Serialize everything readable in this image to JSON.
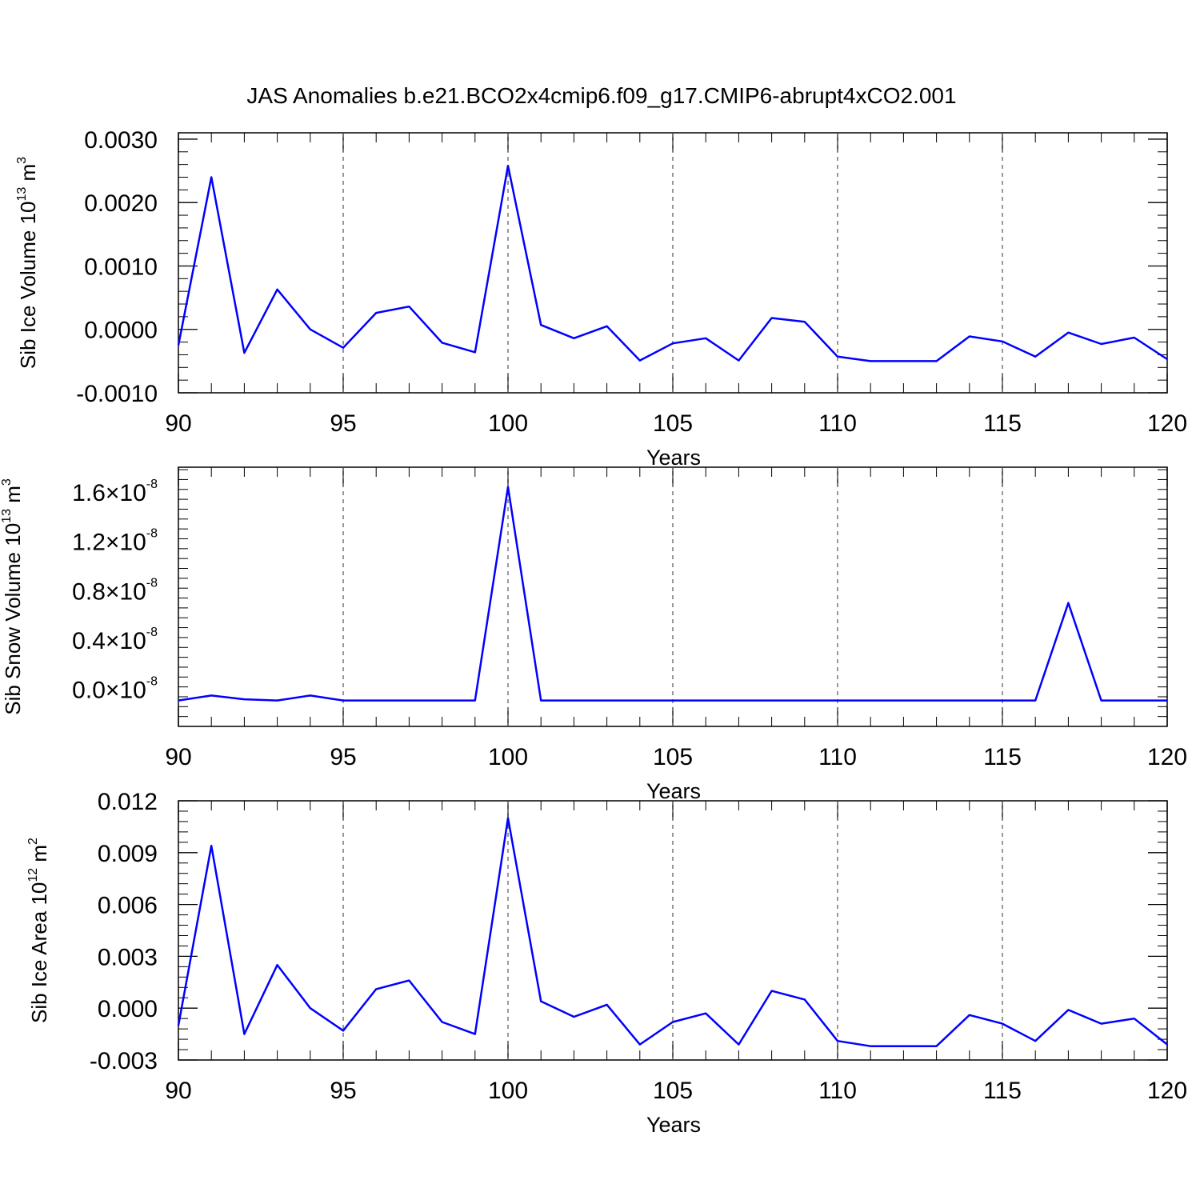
{
  "title": "JAS Anomalies b.e21.BCO2x4cmip6.f09_g17.CMIP6-abrupt4xCO2.001",
  "line_color": "#0000ff",
  "chart_data": [
    {
      "type": "line",
      "ylabel": {
        "text": "Sib Ice Volume 10",
        "sup": "13",
        "unit": " m",
        "unit_sup": "3"
      },
      "xlabel": "Years",
      "xlim": [
        90,
        120
      ],
      "ylim": [
        -0.001,
        0.0031
      ],
      "xticks": [
        "90",
        "95",
        "100",
        "105",
        "110",
        "115",
        "120"
      ],
      "yticks": [
        {
          "value": -0.001,
          "label": "-0.0010"
        },
        {
          "value": 0.0,
          "label": "0.0000"
        },
        {
          "value": 0.001,
          "label": "0.0010"
        },
        {
          "value": 0.002,
          "label": "0.0020"
        },
        {
          "value": 0.003,
          "label": "0.0030"
        }
      ],
      "grid": "vertical dashed at major x ticks",
      "series": [
        {
          "x": [
            90,
            91,
            92,
            93,
            94,
            95,
            96,
            97,
            98,
            99,
            100,
            101,
            102,
            103,
            104,
            105,
            106,
            107,
            108,
            109,
            110,
            111,
            112,
            113,
            114,
            115,
            116,
            117,
            118,
            119,
            120
          ],
          "values": [
            -0.00025,
            0.0024,
            -0.00037,
            0.00063,
            0.0,
            -0.00029,
            0.00026,
            0.00036,
            -0.00021,
            -0.00036,
            0.00258,
            7e-05,
            -0.00014,
            5e-05,
            -0.00049,
            -0.00022,
            -0.00014,
            -0.00049,
            0.00018,
            0.00012,
            -0.00043,
            -0.0005,
            -0.0005,
            -0.0005,
            -0.00011,
            -0.00019,
            -0.00043,
            -5e-05,
            -0.00023,
            -0.00013,
            -0.00047
          ]
        }
      ]
    },
    {
      "type": "line",
      "ylabel": {
        "text": "Sib Snow Volume 10",
        "sup": "13",
        "unit": " m",
        "unit_sup": "3"
      },
      "xlabel": "Years",
      "xlim": [
        90,
        120
      ],
      "ylim": [
        -3e-09,
        1.8e-08
      ],
      "xticks": [
        "90",
        "95",
        "100",
        "105",
        "110",
        "115",
        "120"
      ],
      "yticks": [
        {
          "value": 0.0,
          "mant": "0.0",
          "exp": "-8"
        },
        {
          "value": 4e-09,
          "mant": "0.4",
          "exp": "-8"
        },
        {
          "value": 8e-09,
          "mant": "0.8",
          "exp": "-8"
        },
        {
          "value": 1.2e-08,
          "mant": "1.2",
          "exp": "-8"
        },
        {
          "value": 1.6e-08,
          "mant": "1.6",
          "exp": "-8"
        }
      ],
      "grid": "vertical dashed at major x ticks",
      "series": [
        {
          "x": [
            90,
            91,
            92,
            93,
            94,
            95,
            96,
            97,
            98,
            99,
            100,
            101,
            102,
            103,
            104,
            105,
            106,
            107,
            108,
            109,
            110,
            111,
            112,
            113,
            114,
            115,
            116,
            117,
            118,
            119,
            120
          ],
          "values": [
            -9e-10,
            -5e-10,
            -8e-10,
            -9e-10,
            -5e-10,
            -9e-10,
            -9e-10,
            -9e-10,
            -9e-10,
            -9e-10,
            1.64e-08,
            -9e-10,
            -9e-10,
            -9e-10,
            -9e-10,
            -9e-10,
            -9e-10,
            -9e-10,
            -9e-10,
            -9e-10,
            -9e-10,
            -9e-10,
            -9e-10,
            -9e-10,
            -9e-10,
            -9e-10,
            -9e-10,
            7e-09,
            -9e-10,
            -9e-10,
            -9e-10
          ]
        }
      ]
    },
    {
      "type": "line",
      "ylabel": {
        "text": "Sib Ice Area 10",
        "sup": "12",
        "unit": " m",
        "unit_sup": "2"
      },
      "xlabel": "Years",
      "xlim": [
        90,
        120
      ],
      "ylim": [
        -0.003,
        0.012
      ],
      "xticks": [
        "90",
        "95",
        "100",
        "105",
        "110",
        "115",
        "120"
      ],
      "yticks": [
        {
          "value": -0.003,
          "label": "-0.003"
        },
        {
          "value": 0.0,
          "label": "0.000"
        },
        {
          "value": 0.003,
          "label": "0.003"
        },
        {
          "value": 0.006,
          "label": "0.006"
        },
        {
          "value": 0.009,
          "label": "0.009"
        },
        {
          "value": 0.012,
          "label": "0.012"
        }
      ],
      "grid": "vertical dashed at major x ticks",
      "series": [
        {
          "x": [
            90,
            91,
            92,
            93,
            94,
            95,
            96,
            97,
            98,
            99,
            100,
            101,
            102,
            103,
            104,
            105,
            106,
            107,
            108,
            109,
            110,
            111,
            112,
            113,
            114,
            115,
            116,
            117,
            118,
            119,
            120
          ],
          "values": [
            -0.001,
            0.0094,
            -0.0015,
            0.0025,
            0.0,
            -0.0013,
            0.0011,
            0.0016,
            -0.0008,
            -0.0015,
            0.011,
            0.0004,
            -0.0005,
            0.0002,
            -0.0021,
            -0.0008,
            -0.0003,
            -0.0021,
            0.001,
            0.0005,
            -0.0019,
            -0.0022,
            -0.0022,
            -0.0022,
            -0.0004,
            -0.0009,
            -0.0019,
            -0.0001,
            -0.0009,
            -0.0006,
            -0.0021
          ]
        }
      ]
    }
  ]
}
